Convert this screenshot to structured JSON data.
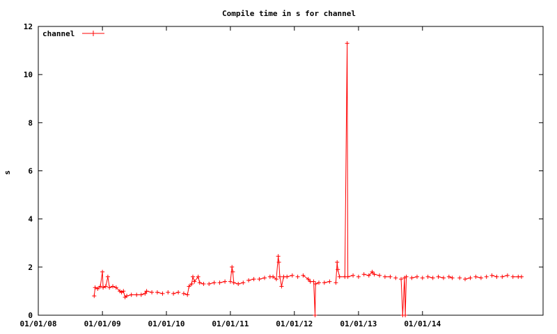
{
  "chart_data": {
    "type": "line",
    "title": "Compile time in s for channel",
    "xlabel": "",
    "ylabel": "s",
    "x_type": "date",
    "xlim": [
      "2008-01-01",
      "2015-11-20"
    ],
    "ylim": [
      0,
      12
    ],
    "x_ticks": [
      "2008-01-01",
      "2009-01-01",
      "2010-01-01",
      "2011-01-01",
      "2012-01-01",
      "2013-01-01",
      "2014-01-01"
    ],
    "x_tick_labels": [
      "01/01/08",
      "01/01/09",
      "01/01/10",
      "01/01/11",
      "01/01/12",
      "01/01/13",
      "01/01/14"
    ],
    "y_ticks": [
      0,
      2,
      4,
      6,
      8,
      10,
      12
    ],
    "y_tick_labels": [
      "0",
      "2",
      "4",
      "6",
      "8",
      "10",
      "12"
    ],
    "grid": false,
    "legend_position": "top-left",
    "series": [
      {
        "name": "channel",
        "color": "#ff0000",
        "marker": "plus",
        "points": [
          [
            "2008-11-15",
            0.8
          ],
          [
            "2008-11-20",
            1.15
          ],
          [
            "2008-12-05",
            1.1
          ],
          [
            "2008-12-20",
            1.2
          ],
          [
            "2009-01-01",
            1.8
          ],
          [
            "2009-01-05",
            1.15
          ],
          [
            "2009-01-20",
            1.2
          ],
          [
            "2009-02-01",
            1.6
          ],
          [
            "2009-02-10",
            1.15
          ],
          [
            "2009-03-01",
            1.2
          ],
          [
            "2009-03-20",
            1.15
          ],
          [
            "2009-04-10",
            1.0
          ],
          [
            "2009-04-20",
            0.95
          ],
          [
            "2009-05-01",
            1.0
          ],
          [
            "2009-05-10",
            0.75
          ],
          [
            "2009-05-20",
            0.8
          ],
          [
            "2009-06-15",
            0.85
          ],
          [
            "2009-07-15",
            0.85
          ],
          [
            "2009-08-10",
            0.85
          ],
          [
            "2009-09-01",
            0.9
          ],
          [
            "2009-09-10",
            1.0
          ],
          [
            "2009-10-10",
            0.95
          ],
          [
            "2009-11-10",
            0.95
          ],
          [
            "2009-12-10",
            0.9
          ],
          [
            "2010-01-10",
            0.95
          ],
          [
            "2010-02-10",
            0.9
          ],
          [
            "2010-03-10",
            0.95
          ],
          [
            "2010-04-10",
            0.9
          ],
          [
            "2010-05-01",
            0.85
          ],
          [
            "2010-05-10",
            1.2
          ],
          [
            "2010-05-25",
            1.3
          ],
          [
            "2010-06-01",
            1.6
          ],
          [
            "2010-06-10",
            1.4
          ],
          [
            "2010-07-01",
            1.6
          ],
          [
            "2010-07-10",
            1.35
          ],
          [
            "2010-08-01",
            1.3
          ],
          [
            "2010-09-01",
            1.3
          ],
          [
            "2010-10-01",
            1.35
          ],
          [
            "2010-11-01",
            1.35
          ],
          [
            "2010-12-01",
            1.4
          ],
          [
            "2011-01-01",
            1.4
          ],
          [
            "2011-01-10",
            2.0
          ],
          [
            "2011-01-15",
            1.8
          ],
          [
            "2011-01-20",
            1.35
          ],
          [
            "2011-02-15",
            1.3
          ],
          [
            "2011-03-15",
            1.35
          ],
          [
            "2011-04-15",
            1.45
          ],
          [
            "2011-05-15",
            1.5
          ],
          [
            "2011-06-15",
            1.5
          ],
          [
            "2011-07-15",
            1.55
          ],
          [
            "2011-08-15",
            1.6
          ],
          [
            "2011-09-01",
            1.6
          ],
          [
            "2011-09-20",
            1.5
          ],
          [
            "2011-10-01",
            2.45
          ],
          [
            "2011-10-05",
            2.2
          ],
          [
            "2011-10-10",
            1.6
          ],
          [
            "2011-10-20",
            1.2
          ],
          [
            "2011-11-01",
            1.6
          ],
          [
            "2011-11-20",
            1.6
          ],
          [
            "2011-12-20",
            1.65
          ],
          [
            "2012-01-20",
            1.6
          ],
          [
            "2012-02-20",
            1.65
          ],
          [
            "2012-03-20",
            1.5
          ],
          [
            "2012-04-01",
            1.4
          ],
          [
            "2012-04-20",
            1.4
          ],
          [
            "2012-04-28",
            0.0
          ],
          [
            "2012-05-01",
            1.3
          ],
          [
            "2012-05-20",
            1.35
          ],
          [
            "2012-06-20",
            1.35
          ],
          [
            "2012-07-20",
            1.4
          ],
          [
            "2012-08-25",
            1.35
          ],
          [
            "2012-09-01",
            2.2
          ],
          [
            "2012-09-05",
            1.9
          ],
          [
            "2012-09-15",
            1.6
          ],
          [
            "2012-10-15",
            1.6
          ],
          [
            "2012-10-28",
            11.3
          ],
          [
            "2012-11-01",
            1.6
          ],
          [
            "2012-12-01",
            1.65
          ],
          [
            "2013-01-01",
            1.6
          ],
          [
            "2013-02-01",
            1.7
          ],
          [
            "2013-03-01",
            1.65
          ],
          [
            "2013-03-20",
            1.8
          ],
          [
            "2013-04-01",
            1.7
          ],
          [
            "2013-05-01",
            1.65
          ],
          [
            "2013-06-01",
            1.6
          ],
          [
            "2013-07-01",
            1.6
          ],
          [
            "2013-08-01",
            1.55
          ],
          [
            "2013-09-01",
            1.5
          ],
          [
            "2013-09-10",
            0.0
          ],
          [
            "2013-09-20",
            1.55
          ],
          [
            "2013-09-25",
            0.0
          ],
          [
            "2013-10-01",
            1.6
          ],
          [
            "2013-11-01",
            1.55
          ],
          [
            "2013-12-01",
            1.6
          ],
          [
            "2014-01-01",
            1.55
          ],
          [
            "2014-02-01",
            1.6
          ],
          [
            "2014-03-01",
            1.55
          ],
          [
            "2014-04-01",
            1.6
          ],
          [
            "2014-05-01",
            1.55
          ],
          [
            "2014-06-01",
            1.6
          ],
          [
            "2014-06-20",
            1.55
          ],
          [
            "2014-08-01",
            1.55
          ],
          [
            "2014-09-01",
            1.5
          ],
          [
            "2014-10-01",
            1.55
          ],
          [
            "2014-11-01",
            1.6
          ],
          [
            "2014-12-01",
            1.55
          ],
          [
            "2015-01-01",
            1.6
          ],
          [
            "2015-02-01",
            1.65
          ],
          [
            "2015-03-01",
            1.6
          ],
          [
            "2015-04-01",
            1.6
          ],
          [
            "2015-05-01",
            1.65
          ],
          [
            "2015-06-01",
            1.6
          ],
          [
            "2015-07-01",
            1.6
          ],
          [
            "2015-07-20",
            1.6
          ]
        ]
      }
    ]
  }
}
